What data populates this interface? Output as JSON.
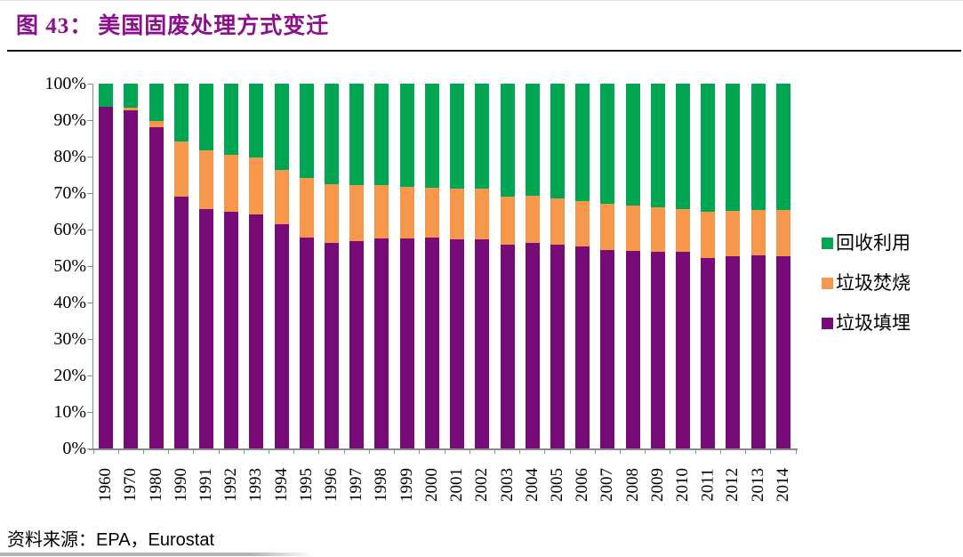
{
  "figure": {
    "index_label": "图 43：",
    "title": "美国固废处理方式变迁"
  },
  "colors": {
    "recycling_green": "#00A651",
    "incineration_orange": "#F6974C",
    "landfill_purple": "#770B78",
    "title_purple": "#8B118C",
    "axis_gray": "#8a8a8a"
  },
  "legend": [
    {
      "label": "回收利用",
      "color": "#00A651"
    },
    {
      "label": "垃圾焚烧",
      "color": "#F6974C"
    },
    {
      "label": "垃圾填埋",
      "color": "#770B78"
    }
  ],
  "source": {
    "prefix": "资料来源：",
    "text": "EPA，Eurostat"
  },
  "chart_data": {
    "type": "bar",
    "stacked": true,
    "stack_unit": "percent",
    "title": "美国固废处理方式变迁",
    "xlabel": "",
    "ylabel": "",
    "ylim": [
      0,
      100
    ],
    "grid": false,
    "legend_position": "right",
    "y_ticks": [
      "0%",
      "10%",
      "20%",
      "30%",
      "40%",
      "50%",
      "60%",
      "70%",
      "80%",
      "90%",
      "100%"
    ],
    "categories": [
      "1960",
      "1970",
      "1980",
      "1990",
      "1991",
      "1992",
      "1993",
      "1994",
      "1995",
      "1996",
      "1997",
      "1998",
      "1999",
      "2000",
      "2001",
      "2002",
      "2003",
      "2004",
      "2005",
      "2006",
      "2007",
      "2008",
      "2009",
      "2010",
      "2011",
      "2012",
      "2013",
      "2014"
    ],
    "series": [
      {
        "name": "垃圾填埋",
        "key": "landfill",
        "color": "#770B78",
        "values": [
          93.6,
          92.8,
          88.0,
          69.0,
          65.6,
          65.0,
          64.2,
          61.5,
          57.8,
          56.3,
          56.8,
          57.6,
          57.6,
          57.8,
          57.4,
          57.3,
          55.8,
          56.4,
          55.8,
          55.4,
          54.5,
          54.2,
          54.0,
          54.0,
          52.2,
          52.8,
          52.9,
          52.7
        ]
      },
      {
        "name": "垃圾焚烧",
        "key": "incineration",
        "color": "#F6974C",
        "values": [
          0.0,
          0.6,
          1.8,
          15.2,
          16.0,
          15.6,
          15.6,
          14.8,
          16.4,
          16.2,
          15.3,
          14.5,
          14.1,
          13.7,
          13.8,
          13.9,
          13.3,
          12.8,
          12.8,
          12.5,
          12.5,
          12.3,
          12.0,
          11.5,
          12.8,
          12.3,
          12.5,
          12.6
        ]
      },
      {
        "name": "回收利用",
        "key": "recycling",
        "color": "#00A651",
        "values": [
          6.4,
          6.6,
          10.2,
          15.8,
          18.4,
          19.4,
          20.2,
          23.7,
          25.8,
          27.5,
          27.9,
          27.9,
          28.3,
          28.5,
          28.8,
          28.8,
          30.9,
          30.8,
          31.4,
          32.1,
          33.0,
          33.5,
          34.0,
          34.5,
          35.0,
          34.9,
          34.6,
          34.7
        ]
      }
    ]
  }
}
